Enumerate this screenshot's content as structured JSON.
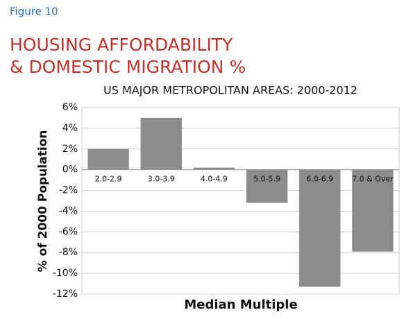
{
  "chart_data": {
    "type": "bar",
    "figure_label": "Figure 10",
    "title": [
      "HOUSING AFFORDABILITY",
      "& DOMESTIC MIGRATION %"
    ],
    "subtitle": "US MAJOR METROPOLITAN AREAS: 2000-2012",
    "y_label": "% of 2000 Population",
    "x_label": "Median Multiple",
    "categories": [
      "2.0-2.9",
      "3.0-3.9",
      "4.0-4.9",
      "5.0-5.9",
      "6.0-6.9",
      "7.0 & Over"
    ],
    "values": [
      2.0,
      5.0,
      0.2,
      -3.2,
      -11.3,
      -7.9
    ],
    "color": "#8c8c8c",
    "ylim": [
      -12,
      6
    ],
    "yticks": [
      {
        "value": -12,
        "label": "-12%"
      },
      {
        "value": -10,
        "label": "-10%"
      },
      {
        "value": -8,
        "label": "-8%"
      },
      {
        "value": -6,
        "label": "-6%"
      },
      {
        "value": -4,
        "label": "-4%"
      },
      {
        "value": -2,
        "label": "-2%"
      },
      {
        "value": 0,
        "label": "0%"
      },
      {
        "value": 2,
        "label": "2%"
      },
      {
        "value": 4,
        "label": "4%"
      },
      {
        "value": 6,
        "label": "6%"
      }
    ],
    "grid": true
  }
}
